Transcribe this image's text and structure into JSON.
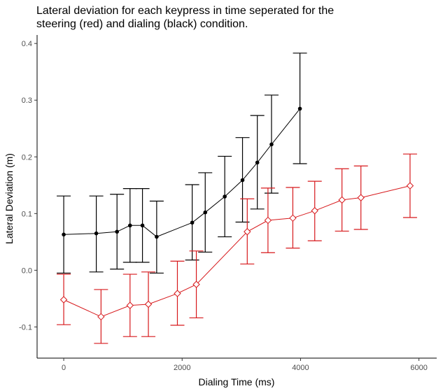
{
  "chart_data": {
    "type": "line",
    "title": [
      "Lateral deviation for each keypress in time seperated for the",
      "steering (red) and dialing (black) condition."
    ],
    "xlabel": "Dialing Time (ms)",
    "ylabel": "Lateral Deviation (m)",
    "xlim": [
      -450,
      6300
    ],
    "ylim": [
      -0.155,
      0.415
    ],
    "xticks": [
      0,
      2000,
      4000,
      6000
    ],
    "xtick_labels": [
      "0",
      "2000",
      "4000",
      "6000"
    ],
    "yticks": [
      -0.1,
      0.0,
      0.1,
      0.2,
      0.3,
      0.4
    ],
    "ytick_labels": [
      "-0.1",
      "0.0",
      "0.1",
      "0.2",
      "0.3",
      "0.4"
    ],
    "grid": false,
    "legend": "none",
    "series": [
      {
        "color": "#000000",
        "marker": "filled-circle",
        "points": [
          {
            "x": 0,
            "y": 0.063,
            "lo": -0.005,
            "hi": 0.131
          },
          {
            "x": 550,
            "y": 0.065,
            "lo": -0.003,
            "hi": 0.131
          },
          {
            "x": 900,
            "y": 0.068,
            "lo": 0.002,
            "hi": 0.134
          },
          {
            "x": 1120,
            "y": 0.079,
            "lo": 0.014,
            "hi": 0.144
          },
          {
            "x": 1330,
            "y": 0.079,
            "lo": 0.014,
            "hi": 0.144
          },
          {
            "x": 1570,
            "y": 0.059,
            "lo": -0.005,
            "hi": 0.122
          },
          {
            "x": 2170,
            "y": 0.084,
            "lo": 0.018,
            "hi": 0.151
          },
          {
            "x": 2390,
            "y": 0.102,
            "lo": 0.032,
            "hi": 0.172
          },
          {
            "x": 2720,
            "y": 0.13,
            "lo": 0.059,
            "hi": 0.201
          },
          {
            "x": 3020,
            "y": 0.159,
            "lo": 0.085,
            "hi": 0.234
          },
          {
            "x": 3270,
            "y": 0.19,
            "lo": 0.108,
            "hi": 0.273
          },
          {
            "x": 3510,
            "y": 0.222,
            "lo": 0.136,
            "hi": 0.309
          },
          {
            "x": 3990,
            "y": 0.285,
            "lo": 0.188,
            "hi": 0.383
          }
        ]
      },
      {
        "color": "#d7191c",
        "marker": "open-diamond",
        "points": [
          {
            "x": 0,
            "y": -0.052,
            "lo": -0.096,
            "hi": -0.007
          },
          {
            "x": 630,
            "y": -0.082,
            "lo": -0.129,
            "hi": -0.034
          },
          {
            "x": 1120,
            "y": -0.062,
            "lo": -0.117,
            "hi": -0.007
          },
          {
            "x": 1430,
            "y": -0.06,
            "lo": -0.117,
            "hi": -0.003
          },
          {
            "x": 1920,
            "y": -0.041,
            "lo": -0.097,
            "hi": 0.016
          },
          {
            "x": 2240,
            "y": -0.025,
            "lo": -0.084,
            "hi": 0.034
          },
          {
            "x": 3100,
            "y": 0.068,
            "lo": 0.011,
            "hi": 0.126
          },
          {
            "x": 3450,
            "y": 0.088,
            "lo": 0.031,
            "hi": 0.145
          },
          {
            "x": 3870,
            "y": 0.092,
            "lo": 0.039,
            "hi": 0.146
          },
          {
            "x": 4240,
            "y": 0.105,
            "lo": 0.052,
            "hi": 0.157
          },
          {
            "x": 4700,
            "y": 0.124,
            "lo": 0.069,
            "hi": 0.179
          },
          {
            "x": 5020,
            "y": 0.128,
            "lo": 0.072,
            "hi": 0.184
          },
          {
            "x": 5850,
            "y": 0.149,
            "lo": 0.093,
            "hi": 0.205
          }
        ]
      }
    ]
  }
}
